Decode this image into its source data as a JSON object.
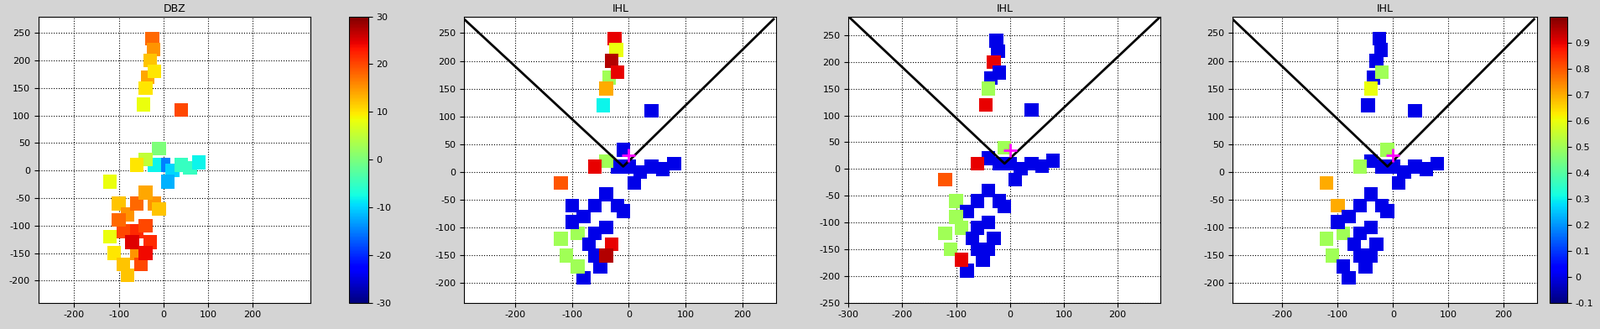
{
  "chart_data": [
    {
      "type": "scatter",
      "title": "DBZ",
      "marker": "s",
      "grid": true,
      "x": [
        -25,
        -22,
        -30,
        -35,
        -40,
        -45,
        -20,
        -10,
        0,
        20,
        40,
        -20,
        10,
        -40,
        -60,
        60,
        80,
        -100,
        -80,
        -60,
        -90,
        -60,
        -40,
        -20,
        -30,
        -60,
        -50,
        -80,
        -110,
        -100,
        -70,
        -40,
        -10,
        -120,
        -90,
        -120,
        40,
        -40
      ],
      "y": [
        240,
        220,
        200,
        170,
        150,
        120,
        180,
        40,
        10,
        0,
        10,
        10,
        -20,
        20,
        10,
        5,
        15,
        -60,
        -80,
        -60,
        -110,
        -110,
        -100,
        -60,
        -130,
        -150,
        -170,
        -190,
        -150,
        -90,
        -130,
        -150,
        -70,
        -120,
        -170,
        -20,
        110,
        -40
      ],
      "values": [
        18,
        15,
        12,
        14,
        10,
        8,
        10,
        0,
        -15,
        -10,
        -5,
        -8,
        -12,
        5,
        10,
        -5,
        -8,
        12,
        15,
        18,
        20,
        22,
        20,
        15,
        22,
        15,
        20,
        12,
        10,
        18,
        25,
        24,
        12,
        8,
        12,
        8,
        20,
        14
      ],
      "clim": [
        -30,
        30
      ],
      "colorbar_ticks": [
        -30,
        -20,
        -10,
        0,
        10,
        20,
        30
      ],
      "xlim": [
        -280,
        330
      ],
      "ylim": [
        -240,
        280
      ],
      "xticks": [
        -200,
        -100,
        0,
        100,
        200
      ],
      "yticks": [
        -200,
        -150,
        -100,
        -50,
        0,
        50,
        100,
        150,
        200,
        250
      ],
      "series": []
    },
    {
      "type": "scatter",
      "title": "IHL",
      "marker": "s",
      "grid": true,
      "x": [
        -25,
        -22,
        -30,
        -35,
        -40,
        -45,
        -20,
        -10,
        0,
        20,
        40,
        -20,
        10,
        -40,
        -60,
        60,
        80,
        -100,
        -80,
        -60,
        -90,
        -60,
        -40,
        -20,
        -30,
        -60,
        -50,
        -80,
        -110,
        -100,
        -70,
        -40,
        -10,
        -120,
        -90,
        -120,
        40,
        -40
      ],
      "y": [
        240,
        220,
        200,
        170,
        150,
        120,
        180,
        40,
        10,
        0,
        10,
        10,
        -20,
        20,
        10,
        5,
        15,
        -60,
        -80,
        -60,
        -110,
        -110,
        -100,
        -60,
        -130,
        -150,
        -170,
        -190,
        -150,
        -90,
        -130,
        -150,
        -70,
        -120,
        -170,
        -20,
        110,
        -40
      ],
      "values": [
        0.9,
        0.6,
        0.95,
        0.5,
        0.7,
        0.3,
        0.9,
        0,
        0,
        0,
        0,
        0,
        0,
        0.5,
        0.9,
        0,
        0,
        0,
        0,
        0,
        0.5,
        0,
        0,
        0,
        0.9,
        0,
        0,
        0,
        0.5,
        0,
        0,
        0.95,
        0,
        0.5,
        0.5,
        0.8,
        0,
        0
      ],
      "clim": [
        -0.1,
        1
      ],
      "xlim": [
        -290,
        260
      ],
      "ylim": [
        -235,
        280
      ],
      "xticks": [
        -200,
        -100,
        0,
        100,
        200
      ],
      "yticks": [
        -200,
        -150,
        -100,
        -50,
        0,
        50,
        100,
        150,
        200,
        250
      ],
      "series": [
        {
          "type": "line",
          "color": "#000000",
          "x": [
            -290,
            -10,
            255
          ],
          "y": [
            275,
            10,
            275
          ]
        },
        {
          "type": "scatter",
          "color": "#ff00ff",
          "marker": "+",
          "x": [
            0
          ],
          "y": [
            30
          ]
        }
      ]
    },
    {
      "type": "scatter",
      "title": "IHL",
      "marker": "s",
      "grid": true,
      "x": [
        -25,
        -22,
        -30,
        -35,
        -40,
        -45,
        -20,
        -10,
        0,
        20,
        40,
        -20,
        10,
        -40,
        -60,
        60,
        80,
        -100,
        -80,
        -60,
        -90,
        -60,
        -40,
        -20,
        -30,
        -60,
        -50,
        -80,
        -110,
        -100,
        -70,
        -40,
        -10,
        -120,
        -90,
        -120,
        40,
        -40
      ],
      "y": [
        240,
        220,
        200,
        170,
        150,
        120,
        180,
        40,
        10,
        0,
        10,
        10,
        -20,
        20,
        10,
        5,
        15,
        -60,
        -80,
        -60,
        -110,
        -110,
        -100,
        -60,
        -130,
        -150,
        -170,
        -190,
        -150,
        -90,
        -130,
        -150,
        -70,
        -120,
        -170,
        -20,
        110,
        -40
      ],
      "values": [
        0,
        0,
        0.9,
        0,
        0.5,
        0.9,
        0,
        0.5,
        0,
        0,
        0,
        0,
        0,
        0,
        0.9,
        0,
        0,
        0.5,
        0,
        0,
        0.5,
        0,
        0,
        0,
        0,
        0,
        0,
        0,
        0.5,
        0.5,
        0,
        0,
        0,
        0.5,
        0.9,
        0.8,
        0,
        0
      ],
      "clim": [
        -0.1,
        1
      ],
      "xlim": [
        -300,
        280
      ],
      "ylim": [
        -250,
        285
      ],
      "xticks": [
        -300,
        -200,
        -100,
        0,
        100,
        200
      ],
      "yticks": [
        -250,
        -200,
        -150,
        -100,
        -50,
        0,
        50,
        100,
        150,
        200,
        250
      ],
      "series": [
        {
          "type": "line",
          "color": "#000000",
          "x": [
            -300,
            -10,
            280
          ],
          "y": [
            285,
            10,
            285
          ]
        },
        {
          "type": "scatter",
          "color": "#ff00ff",
          "marker": "+",
          "x": [
            0
          ],
          "y": [
            35
          ]
        }
      ]
    },
    {
      "type": "scatter",
      "title": "IHL",
      "marker": "s",
      "grid": true,
      "x": [
        -25,
        -22,
        -30,
        -35,
        -40,
        -45,
        -20,
        -10,
        0,
        20,
        40,
        -20,
        10,
        -40,
        -60,
        60,
        80,
        -100,
        -80,
        -60,
        -90,
        -60,
        -40,
        -20,
        -30,
        -60,
        -50,
        -80,
        -110,
        -100,
        -70,
        -40,
        -10,
        -120,
        -90,
        -120,
        40,
        -40
      ],
      "y": [
        240,
        220,
        200,
        170,
        150,
        120,
        180,
        40,
        10,
        0,
        10,
        10,
        -20,
        20,
        10,
        5,
        15,
        -60,
        -80,
        -60,
        -110,
        -110,
        -100,
        -60,
        -130,
        -150,
        -170,
        -190,
        -150,
        -90,
        -130,
        -150,
        -70,
        -120,
        -170,
        -20,
        110,
        -40
      ],
      "values": [
        0,
        0,
        0,
        0,
        0.6,
        0,
        0.5,
        0.5,
        0,
        0,
        0,
        0,
        0,
        0,
        0.5,
        0,
        0,
        0.7,
        0,
        0,
        0.5,
        0,
        0,
        0,
        0,
        0,
        0,
        0,
        0.5,
        0,
        0,
        0,
        0,
        0.5,
        0,
        0.7,
        0,
        0
      ],
      "clim": [
        -0.1,
        1
      ],
      "colorbar_ticks": [
        -0.1,
        0,
        0.1,
        0.2,
        0.3,
        0.4,
        0.5,
        0.6,
        0.7,
        0.8,
        0.9
      ],
      "xlim": [
        -290,
        260
      ],
      "ylim": [
        -235,
        280
      ],
      "xticks": [
        -200,
        -100,
        0,
        100,
        200
      ],
      "yticks": [
        -200,
        -150,
        -100,
        -50,
        0,
        50,
        100,
        150,
        200,
        250
      ],
      "series": [
        {
          "type": "line",
          "color": "#000000",
          "x": [
            -290,
            -10,
            255
          ],
          "y": [
            275,
            10,
            275
          ]
        },
        {
          "type": "scatter",
          "color": "#ff00ff",
          "marker": "+",
          "x": [
            0
          ],
          "y": [
            30
          ]
        }
      ]
    }
  ]
}
